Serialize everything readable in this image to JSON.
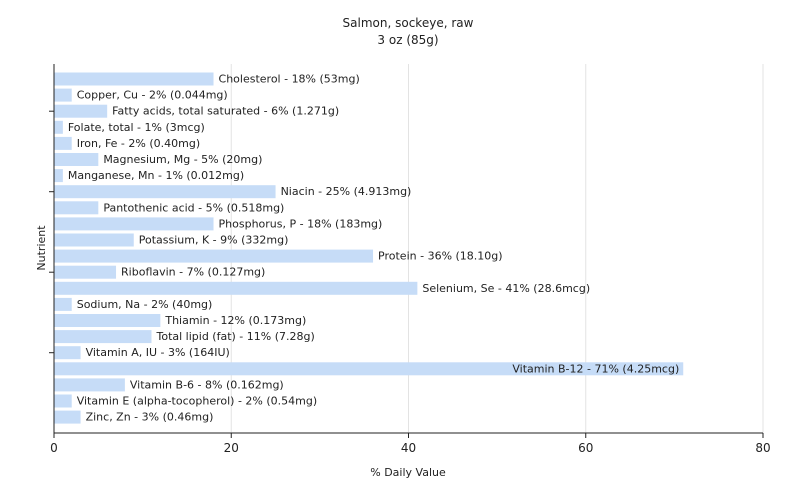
{
  "chart_data": {
    "type": "bar",
    "orientation": "horizontal",
    "title": "Salmon, sockeye, raw",
    "subtitle": "3 oz (85g)",
    "xlabel": "% Daily Value",
    "ylabel": "Nutrient",
    "xlim": [
      0,
      80
    ],
    "xticks": [
      0,
      20,
      40,
      60,
      80
    ],
    "grid": true,
    "bar_color": "#c6dcf7",
    "categories": [
      "Cholesterol",
      "Copper, Cu",
      "Fatty acids, total saturated",
      "Folate, total",
      "Iron, Fe",
      "Magnesium, Mg",
      "Manganese, Mn",
      "Niacin",
      "Pantothenic acid",
      "Phosphorus, P",
      "Potassium, K",
      "Protein",
      "Riboflavin",
      "Selenium, Se",
      "Sodium, Na",
      "Thiamin",
      "Total lipid (fat)",
      "Vitamin A, IU",
      "Vitamin B-12",
      "Vitamin B-6",
      "Vitamin E (alpha-tocopherol)",
      "Zinc, Zn"
    ],
    "values": [
      18,
      2,
      6,
      1,
      2,
      5,
      1,
      25,
      5,
      18,
      9,
      36,
      7,
      41,
      2,
      12,
      11,
      3,
      71,
      8,
      2,
      3
    ],
    "labels": [
      "Cholesterol - 18% (53mg)",
      "Copper, Cu - 2% (0.044mg)",
      "Fatty acids, total saturated - 6% (1.271g)",
      "Folate, total - 1% (3mcg)",
      "Iron, Fe - 2% (0.40mg)",
      "Magnesium, Mg - 5% (20mg)",
      "Manganese, Mn - 1% (0.012mg)",
      "Niacin - 25% (4.913mg)",
      "Pantothenic acid - 5% (0.518mg)",
      "Phosphorus, P - 18% (183mg)",
      "Potassium, K - 9% (332mg)",
      "Protein - 36% (18.10g)",
      "Riboflavin - 7% (0.127mg)",
      "Selenium, Se - 41% (28.6mcg)",
      "Sodium, Na - 2% (40mg)",
      "Thiamin - 12% (0.173mg)",
      "Total lipid (fat) - 11% (7.28g)",
      "Vitamin A, IU - 3% (164IU)",
      "Vitamin B-12 - 71% (4.25mcg)",
      "Vitamin B-6 - 8% (0.162mg)",
      "Vitamin E (alpha-tocopherol) - 2% (0.54mg)",
      "Zinc, Zn - 3% (0.46mg)"
    ]
  }
}
